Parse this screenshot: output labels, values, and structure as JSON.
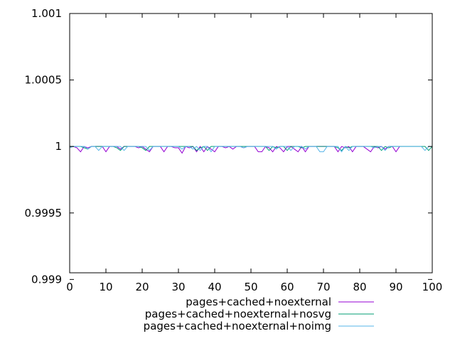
{
  "chart_data": {
    "type": "line",
    "title": "",
    "xlabel": "",
    "ylabel": "",
    "xlim": [
      0,
      100
    ],
    "ylim": [
      0.99905,
      1.001
    ],
    "xticks": [
      0,
      10,
      20,
      30,
      40,
      50,
      60,
      70,
      80,
      90,
      100
    ],
    "xtick_labels": [
      "0",
      "10",
      "20",
      "30",
      "40",
      "50",
      "60",
      "70",
      "80",
      "90",
      "100"
    ],
    "yticks": [
      0.999,
      0.9995,
      1,
      1.0005,
      1.001
    ],
    "ytick_labels": [
      "0.999",
      "0.9995",
      "1",
      "1.0005",
      "1.001"
    ],
    "grid": false,
    "legend_position": "bottom-right",
    "series": [
      {
        "name": "pages+cached+noexternal",
        "color": "#9400d3",
        "points": [
          [
            0,
            1
          ],
          [
            1,
            1
          ],
          [
            2,
            0.99999
          ],
          [
            3,
            0.99996
          ],
          [
            4,
            1
          ],
          [
            5,
            0.99999
          ],
          [
            6,
            1
          ],
          [
            7,
            1
          ],
          [
            8,
            1
          ],
          [
            9,
            1
          ],
          [
            10,
            0.99996
          ],
          [
            11,
            1
          ],
          [
            12,
            1
          ],
          [
            13,
            1
          ],
          [
            14,
            0.99998
          ],
          [
            15,
            1
          ],
          [
            16,
            1
          ],
          [
            17,
            1
          ],
          [
            18,
            1
          ],
          [
            19,
            0.99999
          ],
          [
            20,
            1
          ],
          [
            21,
            0.99998
          ],
          [
            22,
            0.99996
          ],
          [
            23,
            1
          ],
          [
            24,
            1
          ],
          [
            25,
            1
          ],
          [
            26,
            0.99996
          ],
          [
            27,
            1
          ],
          [
            28,
            1
          ],
          [
            29,
            0.99999
          ],
          [
            30,
            0.99999
          ],
          [
            31,
            0.99995
          ],
          [
            32,
            1
          ],
          [
            33,
            0.99999
          ],
          [
            34,
            1
          ],
          [
            35,
            0.99996
          ],
          [
            36,
            1
          ],
          [
            37,
            0.99996
          ],
          [
            38,
            1
          ],
          [
            39,
            0.99998
          ],
          [
            40,
            0.99996
          ],
          [
            41,
            1
          ],
          [
            42,
            1
          ],
          [
            43,
            0.99999
          ],
          [
            44,
            1
          ],
          [
            45,
            0.99998
          ],
          [
            46,
            1
          ],
          [
            47,
            1
          ],
          [
            48,
            0.99999
          ],
          [
            49,
            1
          ],
          [
            50,
            1
          ],
          [
            51,
            1
          ],
          [
            52,
            0.99996
          ],
          [
            53,
            0.99996
          ],
          [
            54,
            1
          ],
          [
            55,
            0.99999
          ],
          [
            56,
            0.99996
          ],
          [
            57,
            1
          ],
          [
            58,
            0.99999
          ],
          [
            59,
            0.99996
          ],
          [
            60,
            1
          ],
          [
            61,
            1
          ],
          [
            62,
            0.99998
          ],
          [
            63,
            0.99996
          ],
          [
            64,
            1
          ],
          [
            65,
            0.99996
          ],
          [
            66,
            1
          ],
          [
            67,
            1
          ],
          [
            68,
            1
          ],
          [
            69,
            1
          ],
          [
            70,
            1
          ],
          [
            71,
            1
          ],
          [
            72,
            1
          ],
          [
            73,
            1
          ],
          [
            74,
            0.99996
          ],
          [
            75,
            1
          ],
          [
            76,
            0.99999
          ],
          [
            77,
            1
          ],
          [
            78,
            0.99996
          ],
          [
            79,
            1
          ],
          [
            80,
            1
          ],
          [
            81,
            1
          ],
          [
            82,
            0.99998
          ],
          [
            83,
            0.99996
          ],
          [
            84,
            1
          ],
          [
            85,
            0.99999
          ],
          [
            86,
            1
          ],
          [
            87,
            0.99998
          ],
          [
            88,
            1
          ],
          [
            89,
            1
          ],
          [
            90,
            0.99996
          ],
          [
            91,
            1
          ]
        ]
      },
      {
        "name": "pages+cached+noexternal+nosvg",
        "color": "#009e73",
        "points": [
          [
            0,
            1
          ],
          [
            1,
            1
          ],
          [
            2,
            1
          ],
          [
            3,
            1
          ],
          [
            4,
            0.99999
          ],
          [
            5,
            0.99998
          ],
          [
            6,
            1
          ],
          [
            7,
            1
          ],
          [
            8,
            1
          ],
          [
            9,
            1
          ],
          [
            10,
            1
          ],
          [
            11,
            1
          ],
          [
            12,
            1
          ],
          [
            13,
            0.99999
          ],
          [
            14,
            0.99997
          ],
          [
            15,
            1
          ],
          [
            16,
            1
          ],
          [
            17,
            1
          ],
          [
            18,
            1
          ],
          [
            19,
            1
          ],
          [
            20,
            0.99999
          ],
          [
            21,
            0.99997
          ],
          [
            22,
            1
          ],
          [
            23,
            1
          ],
          [
            24,
            1
          ],
          [
            25,
            1
          ],
          [
            26,
            1
          ],
          [
            27,
            1
          ],
          [
            28,
            1
          ],
          [
            29,
            1
          ],
          [
            30,
            1
          ],
          [
            31,
            1
          ],
          [
            32,
            1
          ],
          [
            33,
            1
          ],
          [
            34,
            1
          ],
          [
            35,
            0.99997
          ],
          [
            36,
            0.99999
          ],
          [
            37,
            1
          ],
          [
            38,
            0.99997
          ],
          [
            39,
            1
          ],
          [
            40,
            1
          ],
          [
            41,
            1
          ],
          [
            42,
            1
          ],
          [
            43,
            1
          ],
          [
            44,
            1
          ],
          [
            45,
            1
          ],
          [
            46,
            1
          ],
          [
            47,
            1
          ],
          [
            48,
            1
          ],
          [
            49,
            1
          ],
          [
            50,
            1
          ],
          [
            51,
            1
          ],
          [
            52,
            1
          ],
          [
            53,
            1
          ],
          [
            54,
            1
          ],
          [
            55,
            0.99997
          ],
          [
            56,
            1
          ],
          [
            57,
            0.99999
          ],
          [
            58,
            1
          ],
          [
            59,
            1
          ],
          [
            60,
            0.99997
          ],
          [
            61,
            1
          ],
          [
            62,
            1
          ],
          [
            63,
            1
          ],
          [
            64,
            0.99999
          ],
          [
            65,
            1
          ],
          [
            66,
            1
          ],
          [
            67,
            1
          ],
          [
            68,
            1
          ],
          [
            69,
            1
          ],
          [
            70,
            1
          ],
          [
            71,
            1
          ],
          [
            72,
            1
          ],
          [
            73,
            1
          ],
          [
            74,
            0.99999
          ],
          [
            75,
            0.99997
          ],
          [
            76,
            1
          ],
          [
            77,
            0.99999
          ],
          [
            78,
            1
          ],
          [
            79,
            1
          ],
          [
            80,
            1
          ],
          [
            81,
            1
          ],
          [
            82,
            1
          ],
          [
            83,
            1
          ],
          [
            84,
            1
          ],
          [
            85,
            1
          ],
          [
            86,
            0.99997
          ],
          [
            87,
            1
          ],
          [
            88,
            0.99999
          ],
          [
            89,
            1
          ],
          [
            90,
            1
          ],
          [
            91,
            1
          ],
          [
            92,
            1
          ],
          [
            93,
            1
          ],
          [
            94,
            1
          ],
          [
            95,
            1
          ],
          [
            96,
            1
          ],
          [
            97,
            1
          ],
          [
            98,
            1
          ],
          [
            99,
            0.99997
          ],
          [
            100,
            1
          ]
        ]
      },
      {
        "name": "pages+cached+noexternal+noimg",
        "color": "#56b4e9",
        "points": [
          [
            0,
            0.99999
          ],
          [
            1,
            1
          ],
          [
            2,
            1
          ],
          [
            3,
            1
          ],
          [
            4,
            1
          ],
          [
            5,
            0.99998
          ],
          [
            6,
            1
          ],
          [
            7,
            1
          ],
          [
            8,
            0.99997
          ],
          [
            9,
            1
          ],
          [
            10,
            1
          ],
          [
            11,
            1
          ],
          [
            12,
            1
          ],
          [
            13,
            1
          ],
          [
            14,
            1
          ],
          [
            15,
            0.99997
          ],
          [
            16,
            1
          ],
          [
            17,
            1
          ],
          [
            18,
            1
          ],
          [
            19,
            1
          ],
          [
            20,
            1
          ],
          [
            21,
            1
          ],
          [
            22,
            0.99997
          ],
          [
            23,
            1
          ],
          [
            24,
            1
          ],
          [
            25,
            1
          ],
          [
            26,
            1
          ],
          [
            27,
            1
          ],
          [
            28,
            1
          ],
          [
            29,
            1
          ],
          [
            30,
            1
          ],
          [
            31,
            0.99998
          ],
          [
            32,
            1
          ],
          [
            33,
            1
          ],
          [
            34,
            0.99998
          ],
          [
            35,
            1
          ],
          [
            36,
            0.99997
          ],
          [
            37,
            1
          ],
          [
            38,
            1
          ],
          [
            39,
            0.99996
          ],
          [
            40,
            1
          ],
          [
            41,
            1
          ],
          [
            42,
            1
          ],
          [
            43,
            1
          ],
          [
            44,
            1
          ],
          [
            45,
            1
          ],
          [
            46,
            1
          ],
          [
            47,
            1
          ],
          [
            48,
            0.99999
          ],
          [
            49,
            1
          ],
          [
            50,
            1
          ],
          [
            51,
            1
          ],
          [
            52,
            1
          ],
          [
            53,
            1
          ],
          [
            54,
            1
          ],
          [
            55,
            1
          ],
          [
            56,
            1
          ],
          [
            57,
            0.99998
          ],
          [
            58,
            1
          ],
          [
            59,
            1
          ],
          [
            60,
            1
          ],
          [
            61,
            0.99997
          ],
          [
            62,
            1
          ],
          [
            63,
            1
          ],
          [
            64,
            1
          ],
          [
            65,
            0.99998
          ],
          [
            66,
            1
          ],
          [
            67,
            1
          ],
          [
            68,
            1
          ],
          [
            69,
            0.99996
          ],
          [
            70,
            0.99996
          ],
          [
            71,
            1
          ],
          [
            72,
            1
          ],
          [
            73,
            1
          ],
          [
            74,
            1
          ],
          [
            75,
            0.99996
          ],
          [
            76,
            1
          ],
          [
            77,
            0.99997
          ],
          [
            78,
            1
          ],
          [
            79,
            1
          ],
          [
            80,
            1
          ],
          [
            81,
            1
          ],
          [
            82,
            1
          ],
          [
            83,
            1
          ],
          [
            84,
            0.99999
          ],
          [
            85,
            1
          ],
          [
            86,
            1
          ],
          [
            87,
            0.99997
          ],
          [
            88,
            1
          ],
          [
            89,
            1
          ],
          [
            90,
            1
          ],
          [
            91,
            1
          ],
          [
            92,
            1
          ],
          [
            93,
            1
          ],
          [
            94,
            1
          ],
          [
            95,
            1
          ],
          [
            96,
            1
          ],
          [
            97,
            1
          ],
          [
            98,
            0.99997
          ],
          [
            99,
            1
          ],
          [
            100,
            1
          ]
        ]
      }
    ]
  }
}
